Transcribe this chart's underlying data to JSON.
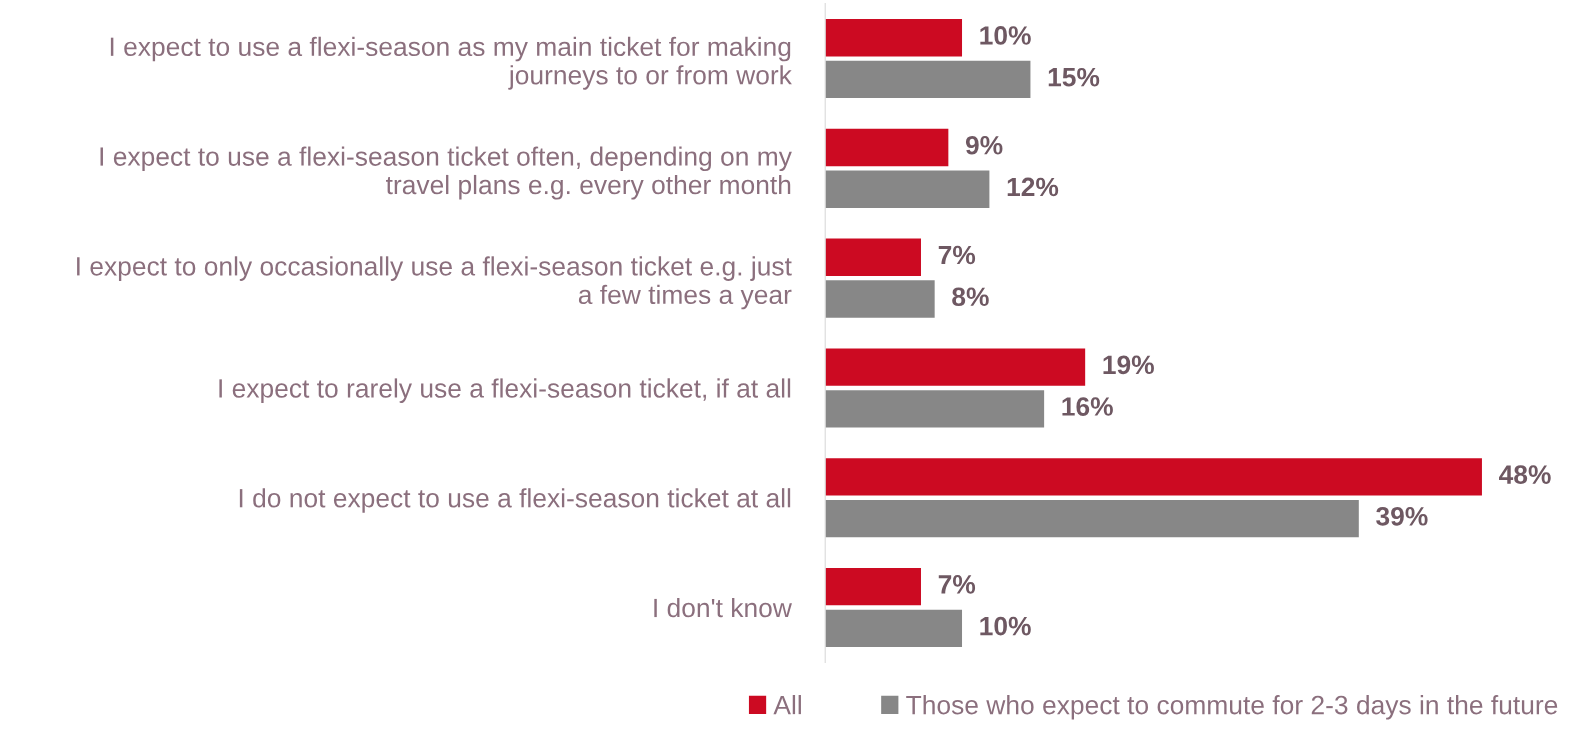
{
  "chart_data": {
    "type": "bar",
    "orientation": "horizontal",
    "categories": [
      "I expect to use a flexi-season as my main ticket for making\njourneys to or from work",
      "I expect to use a flexi-season ticket often, depending on my\ntravel plans e.g. every other month",
      "I expect to only occasionally use a flexi-season ticket e.g. just\na few times a year",
      "I expect to rarely use a flexi-season ticket, if at all",
      "I do not expect to use a flexi-season ticket at all",
      "I don't know"
    ],
    "series": [
      {
        "name": "All",
        "color": "#cc0a22",
        "values": [
          10,
          9,
          7,
          19,
          48,
          7
        ],
        "value_labels": [
          "10%",
          "9%",
          "7%",
          "19%",
          "48%",
          "7%"
        ]
      },
      {
        "name": "Those who expect to commute for 2-3 days in the future",
        "color": "#878787",
        "values": [
          15,
          12,
          8,
          16,
          39,
          10
        ],
        "value_labels": [
          "15%",
          "12%",
          "8%",
          "16%",
          "39%",
          "10%"
        ]
      }
    ],
    "legend": "bottom right"
  }
}
